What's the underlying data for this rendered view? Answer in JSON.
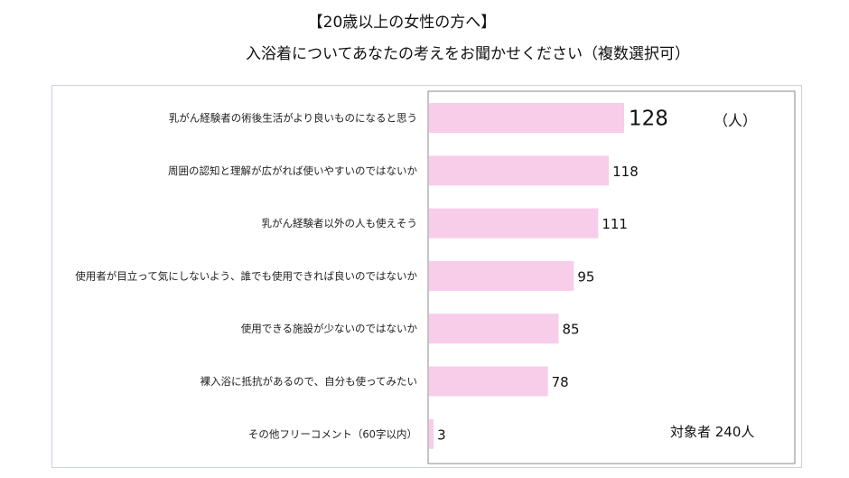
{
  "chart_data": {
    "type": "bar",
    "orientation": "horizontal",
    "title": "【20歳以上の女性の方へ】",
    "subtitle": "入浴着についてあなたの考えをお聞かせください（複数選択可）",
    "categories": [
      "乳がん経験者の術後生活がより良いものになると思う",
      "周囲の認知と理解が広がれば使いやすいのではないか",
      "乳がん経験者以外の人も使えそう",
      "使用者が目立って気にしないよう、誰でも使用できれば良いのではないか",
      "使用できる施設が少ないのではないか",
      "裸入浴に抵抗があるので、自分も使ってみたい",
      "その他フリーコメント（60字以内）"
    ],
    "values": [
      128,
      118,
      111,
      95,
      85,
      78,
      3
    ],
    "unit_label": "（人）",
    "total_label": "対象者 240人",
    "xlim": [
      0,
      240
    ],
    "grid": false,
    "bar_color": "#f7cde9"
  }
}
